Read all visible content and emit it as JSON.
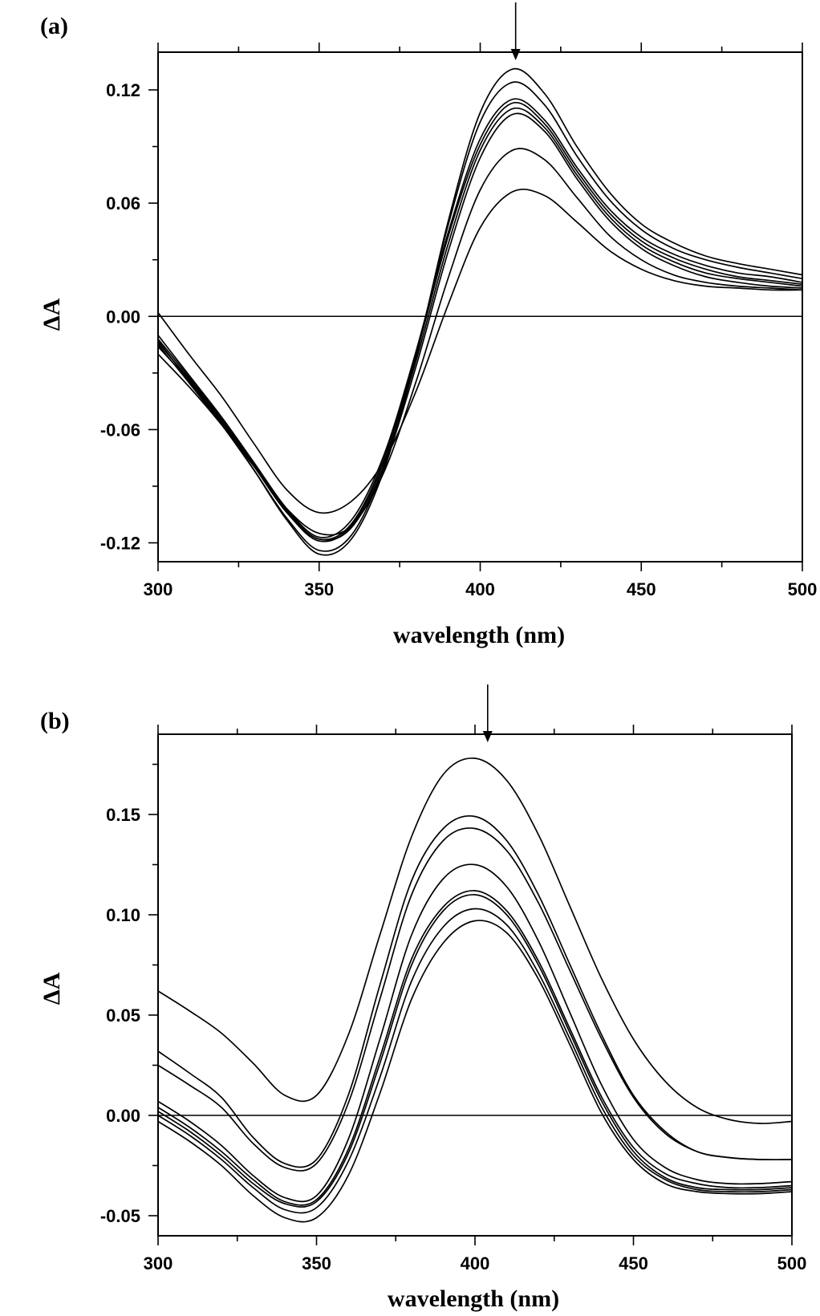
{
  "chart_data": [
    {
      "type": "line",
      "panel_label": "(a)",
      "xlabel": "wavelength (nm)",
      "ylabel": "ΔA",
      "xlim": [
        300,
        500
      ],
      "ylim": [
        -0.13,
        0.14
      ],
      "xticks": [
        300,
        350,
        400,
        450,
        500
      ],
      "xtick_labels": [
        "300",
        "350",
        "400",
        "450",
        "500"
      ],
      "yticks": [
        -0.12,
        -0.06,
        0.0,
        0.06,
        0.12
      ],
      "ytick_labels": [
        "-0.12",
        "-0.06",
        "0.00",
        "0.06",
        "0.12"
      ],
      "grid": false,
      "zero_line": true,
      "arrow_at_x": 411,
      "series": [
        {
          "x": [
            300,
            310,
            320,
            330,
            340,
            350,
            360,
            370,
            380,
            390,
            400,
            410,
            420,
            430,
            440,
            450,
            460,
            470,
            480,
            490,
            500
          ],
          "y": [
            -0.013,
            -0.035,
            -0.057,
            -0.082,
            -0.108,
            -0.126,
            -0.118,
            -0.082,
            -0.022,
            0.05,
            0.108,
            0.131,
            0.118,
            0.09,
            0.066,
            0.049,
            0.039,
            0.032,
            0.028,
            0.025,
            0.022
          ]
        },
        {
          "x": [
            300,
            310,
            320,
            330,
            340,
            350,
            360,
            370,
            380,
            390,
            400,
            410,
            420,
            430,
            440,
            450,
            460,
            470,
            480,
            490,
            500
          ],
          "y": [
            -0.015,
            -0.036,
            -0.058,
            -0.082,
            -0.107,
            -0.124,
            -0.116,
            -0.08,
            -0.021,
            0.048,
            0.103,
            0.124,
            0.112,
            0.085,
            0.062,
            0.046,
            0.036,
            0.03,
            0.026,
            0.023,
            0.02
          ]
        },
        {
          "x": [
            300,
            310,
            320,
            330,
            340,
            350,
            360,
            370,
            380,
            390,
            400,
            410,
            420,
            430,
            440,
            450,
            460,
            470,
            480,
            490,
            500
          ],
          "y": [
            -0.01,
            -0.032,
            -0.054,
            -0.078,
            -0.102,
            -0.117,
            -0.108,
            -0.074,
            -0.019,
            0.044,
            0.094,
            0.115,
            0.104,
            0.079,
            0.057,
            0.042,
            0.033,
            0.027,
            0.023,
            0.021,
            0.018
          ]
        },
        {
          "x": [
            300,
            310,
            320,
            330,
            340,
            350,
            360,
            370,
            380,
            390,
            400,
            410,
            420,
            430,
            440,
            450,
            460,
            470,
            480,
            490,
            500
          ],
          "y": [
            -0.012,
            -0.033,
            -0.055,
            -0.079,
            -0.103,
            -0.118,
            -0.11,
            -0.076,
            -0.021,
            0.042,
            0.091,
            0.113,
            0.102,
            0.077,
            0.055,
            0.04,
            0.031,
            0.025,
            0.021,
            0.019,
            0.017
          ]
        },
        {
          "x": [
            300,
            310,
            320,
            330,
            340,
            350,
            360,
            370,
            380,
            390,
            400,
            410,
            420,
            430,
            440,
            450,
            460,
            470,
            480,
            490,
            500
          ],
          "y": [
            -0.014,
            -0.034,
            -0.056,
            -0.08,
            -0.104,
            -0.119,
            -0.111,
            -0.078,
            -0.024,
            0.038,
            0.088,
            0.11,
            0.1,
            0.075,
            0.053,
            0.038,
            0.029,
            0.023,
            0.02,
            0.018,
            0.016
          ]
        },
        {
          "x": [
            300,
            310,
            320,
            330,
            340,
            350,
            360,
            370,
            380,
            390,
            400,
            410,
            420,
            430,
            440,
            450,
            460,
            470,
            480,
            490,
            500
          ],
          "y": [
            -0.016,
            -0.035,
            -0.057,
            -0.08,
            -0.104,
            -0.118,
            -0.112,
            -0.08,
            -0.027,
            0.034,
            0.084,
            0.107,
            0.098,
            0.073,
            0.051,
            0.036,
            0.027,
            0.021,
            0.018,
            0.016,
            0.015
          ]
        },
        {
          "x": [
            300,
            310,
            320,
            330,
            340,
            350,
            360,
            370,
            380,
            390,
            400,
            410,
            420,
            430,
            440,
            450,
            460,
            470,
            480,
            490,
            500
          ],
          "y": [
            -0.02,
            -0.038,
            -0.058,
            -0.08,
            -0.102,
            -0.115,
            -0.111,
            -0.083,
            -0.035,
            0.02,
            0.067,
            0.088,
            0.083,
            0.063,
            0.043,
            0.03,
            0.022,
            0.018,
            0.016,
            0.015,
            0.014
          ]
        },
        {
          "x": [
            300,
            310,
            320,
            330,
            340,
            350,
            360,
            370,
            380,
            390,
            400,
            410,
            420,
            430,
            440,
            450,
            460,
            470,
            480,
            490,
            500
          ],
          "y": [
            0.002,
            -0.021,
            -0.043,
            -0.068,
            -0.092,
            -0.104,
            -0.098,
            -0.077,
            -0.04,
            0.006,
            0.047,
            0.066,
            0.064,
            0.05,
            0.035,
            0.025,
            0.019,
            0.016,
            0.015,
            0.014,
            0.014
          ]
        }
      ]
    },
    {
      "type": "line",
      "panel_label": "(b)",
      "xlabel": "wavelength (nm)",
      "ylabel": "ΔA",
      "xlim": [
        300,
        500
      ],
      "ylim": [
        -0.06,
        0.19
      ],
      "xticks": [
        300,
        350,
        400,
        450,
        500
      ],
      "xtick_labels": [
        "300",
        "350",
        "400",
        "450",
        "500"
      ],
      "yticks": [
        -0.05,
        0.0,
        0.05,
        0.1,
        0.15
      ],
      "ytick_labels": [
        "-0.05",
        "0.00",
        "0.05",
        "0.10",
        "0.15"
      ],
      "grid": false,
      "zero_line": true,
      "arrow_at_x": 404,
      "series": [
        {
          "x": [
            300,
            310,
            320,
            330,
            340,
            350,
            360,
            370,
            380,
            390,
            400,
            410,
            420,
            430,
            440,
            450,
            460,
            470,
            480,
            490,
            500
          ],
          "y": [
            0.062,
            0.052,
            0.041,
            0.026,
            0.01,
            0.01,
            0.04,
            0.09,
            0.139,
            0.17,
            0.178,
            0.167,
            0.14,
            0.104,
            0.068,
            0.038,
            0.017,
            0.004,
            -0.002,
            -0.004,
            -0.003
          ]
        },
        {
          "x": [
            300,
            310,
            320,
            330,
            340,
            350,
            360,
            370,
            380,
            390,
            400,
            410,
            420,
            430,
            440,
            450,
            460,
            470,
            480,
            490,
            500
          ],
          "y": [
            0.032,
            0.021,
            0.009,
            -0.011,
            -0.024,
            -0.022,
            0.01,
            0.065,
            0.117,
            0.143,
            0.149,
            0.137,
            0.11,
            0.075,
            0.04,
            0.01,
            -0.008,
            -0.018,
            -0.021,
            -0.022,
            -0.022
          ]
        },
        {
          "x": [
            300,
            310,
            320,
            330,
            340,
            350,
            360,
            370,
            380,
            390,
            400,
            410,
            420,
            430,
            440,
            450,
            460,
            470,
            480,
            490,
            500
          ],
          "y": [
            0.025,
            0.015,
            0.004,
            -0.014,
            -0.026,
            -0.024,
            0.006,
            0.058,
            0.11,
            0.137,
            0.143,
            0.132,
            0.106,
            0.072,
            0.038,
            0.009,
            -0.009,
            -0.018,
            -0.021,
            -0.022,
            -0.022
          ]
        },
        {
          "x": [
            300,
            310,
            320,
            330,
            340,
            350,
            360,
            370,
            380,
            390,
            400,
            410,
            420,
            430,
            440,
            450,
            460,
            470,
            480,
            490,
            500
          ],
          "y": [
            0.007,
            -0.003,
            -0.015,
            -0.03,
            -0.041,
            -0.04,
            -0.012,
            0.038,
            0.09,
            0.118,
            0.125,
            0.114,
            0.087,
            0.051,
            0.015,
            -0.012,
            -0.026,
            -0.032,
            -0.034,
            -0.034,
            -0.033
          ]
        },
        {
          "x": [
            300,
            310,
            320,
            330,
            340,
            350,
            360,
            370,
            380,
            390,
            400,
            410,
            420,
            430,
            440,
            450,
            460,
            470,
            480,
            490,
            500
          ],
          "y": [
            0.004,
            -0.006,
            -0.018,
            -0.032,
            -0.043,
            -0.042,
            -0.017,
            0.029,
            0.078,
            0.104,
            0.112,
            0.102,
            0.077,
            0.043,
            0.009,
            -0.016,
            -0.029,
            -0.034,
            -0.036,
            -0.036,
            -0.035
          ]
        },
        {
          "x": [
            300,
            310,
            320,
            330,
            340,
            350,
            360,
            370,
            380,
            390,
            400,
            410,
            420,
            430,
            440,
            450,
            460,
            470,
            480,
            490,
            500
          ],
          "y": [
            0.002,
            -0.008,
            -0.02,
            -0.034,
            -0.044,
            -0.043,
            -0.019,
            0.026,
            0.075,
            0.102,
            0.11,
            0.1,
            0.075,
            0.041,
            0.007,
            -0.018,
            -0.031,
            -0.036,
            -0.037,
            -0.037,
            -0.036
          ]
        },
        {
          "x": [
            300,
            310,
            320,
            330,
            340,
            350,
            360,
            370,
            380,
            390,
            400,
            410,
            420,
            430,
            440,
            450,
            460,
            470,
            480,
            490,
            500
          ],
          "y": [
            0.0,
            -0.01,
            -0.022,
            -0.036,
            -0.047,
            -0.046,
            -0.023,
            0.019,
            0.067,
            0.094,
            0.103,
            0.095,
            0.071,
            0.038,
            0.004,
            -0.02,
            -0.032,
            -0.037,
            -0.038,
            -0.038,
            -0.037
          ]
        },
        {
          "x": [
            300,
            310,
            320,
            330,
            340,
            350,
            360,
            370,
            380,
            390,
            400,
            410,
            420,
            430,
            440,
            450,
            460,
            470,
            480,
            490,
            500
          ],
          "y": [
            -0.003,
            -0.013,
            -0.025,
            -0.04,
            -0.051,
            -0.051,
            -0.03,
            0.011,
            0.058,
            0.086,
            0.097,
            0.091,
            0.068,
            0.035,
            0.001,
            -0.022,
            -0.034,
            -0.038,
            -0.039,
            -0.039,
            -0.038
          ]
        }
      ]
    }
  ]
}
